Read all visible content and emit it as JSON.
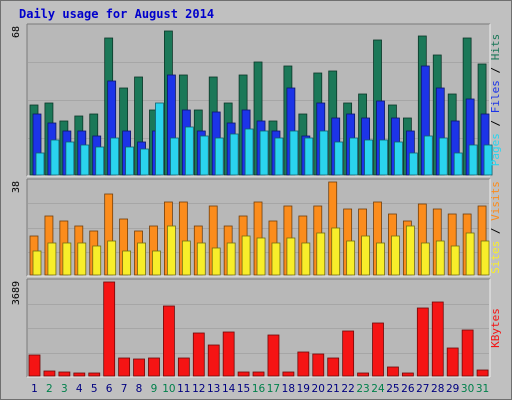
{
  "title": "Daily usage for August 2014",
  "chart_data": [
    {
      "type": "bar",
      "categories": [
        "1",
        "2",
        "3",
        "4",
        "5",
        "6",
        "7",
        "8",
        "9",
        "10",
        "11",
        "12",
        "13",
        "14",
        "15",
        "16",
        "17",
        "18",
        "19",
        "20",
        "21",
        "22",
        "23",
        "24",
        "25",
        "26",
        "27",
        "28",
        "29",
        "30",
        "31"
      ],
      "y_max_label": "68",
      "ylim": [
        0,
        68
      ],
      "series": [
        {
          "name": "Hits",
          "color": "#1b7858",
          "values": [
            32,
            33,
            25,
            27,
            28,
            63,
            40,
            45,
            30,
            66,
            46,
            30,
            45,
            33,
            46,
            52,
            25,
            50,
            28,
            47,
            48,
            33,
            37,
            62,
            32,
            26,
            64,
            55,
            37,
            63,
            51
          ]
        },
        {
          "name": "Files",
          "color": "#1c34e8",
          "values": [
            28,
            24,
            20,
            20,
            18,
            43,
            20,
            15,
            20,
            46,
            30,
            20,
            29,
            24,
            30,
            25,
            20,
            40,
            18,
            33,
            26,
            28,
            26,
            34,
            26,
            20,
            50,
            40,
            25,
            35,
            28
          ]
        },
        {
          "name": "Pages",
          "color": "#2ad4ee",
          "values": [
            10,
            16,
            15,
            14,
            13,
            17,
            13,
            12,
            33,
            17,
            22,
            18,
            17,
            19,
            21,
            20,
            17,
            20,
            17,
            20,
            15,
            17,
            16,
            16,
            15,
            10,
            18,
            17,
            10,
            14,
            14
          ]
        }
      ],
      "legend": [
        "Pages",
        "Files",
        "Hits"
      ]
    },
    {
      "type": "bar",
      "categories": [
        "1",
        "2",
        "3",
        "4",
        "5",
        "6",
        "7",
        "8",
        "9",
        "10",
        "11",
        "12",
        "13",
        "14",
        "15",
        "16",
        "17",
        "18",
        "19",
        "20",
        "21",
        "22",
        "23",
        "24",
        "25",
        "26",
        "27",
        "28",
        "29",
        "30",
        "31"
      ],
      "y_max_label": "38",
      "ylim": [
        0,
        38
      ],
      "series": [
        {
          "name": "Visits",
          "color": "#fb8c1c",
          "values": [
            16,
            24,
            22,
            20,
            18,
            33,
            23,
            18,
            20,
            30,
            30,
            20,
            28,
            20,
            24,
            30,
            22,
            28,
            24,
            28,
            38,
            27,
            27,
            30,
            25,
            22,
            29,
            27,
            25,
            25,
            28
          ]
        },
        {
          "name": "Sites",
          "color": "#f8ee2a",
          "values": [
            10,
            13,
            13,
            13,
            12,
            14,
            10,
            13,
            10,
            20,
            14,
            13,
            11,
            13,
            16,
            15,
            13,
            15,
            13,
            17,
            19,
            14,
            16,
            13,
            16,
            20,
            13,
            14,
            12,
            17,
            14
          ]
        }
      ],
      "legend": [
        "Sites",
        "Visits"
      ]
    },
    {
      "type": "bar",
      "categories": [
        "1",
        "2",
        "3",
        "4",
        "5",
        "6",
        "7",
        "8",
        "9",
        "10",
        "11",
        "12",
        "13",
        "14",
        "15",
        "16",
        "17",
        "18",
        "19",
        "20",
        "21",
        "22",
        "23",
        "24",
        "25",
        "26",
        "27",
        "28",
        "29",
        "30",
        "31"
      ],
      "y_max_label": "3689",
      "ylim": [
        0,
        3689
      ],
      "series": [
        {
          "name": "KBytes",
          "color": "#f51414",
          "values": [
            816,
            200,
            176,
            130,
            117,
            3689,
            700,
            670,
            706,
            2756,
            700,
            1702,
            1222,
            1734,
            149,
            160,
            1603,
            140,
            952,
            880,
            700,
            1785,
            131,
            2093,
            337,
            106,
            2668,
            2914,
            1097,
            1809,
            224
          ]
        }
      ],
      "legend": [
        "KBytes"
      ]
    }
  ],
  "x_label_colors": {
    "weekday": "#000080",
    "weekend": "#00804b"
  },
  "weekend_days": [
    "2",
    "3",
    "9",
    "10",
    "16",
    "17",
    "23",
    "24",
    "30",
    "31"
  ],
  "legend_colors": {
    "Pages": "#2ad4ee",
    "Files": "#1c34e8",
    "Hits": "#1b7858",
    "Sites": "#f8ee2a",
    "Visits": "#fb8c1c",
    "KBytes": "#f51414"
  }
}
